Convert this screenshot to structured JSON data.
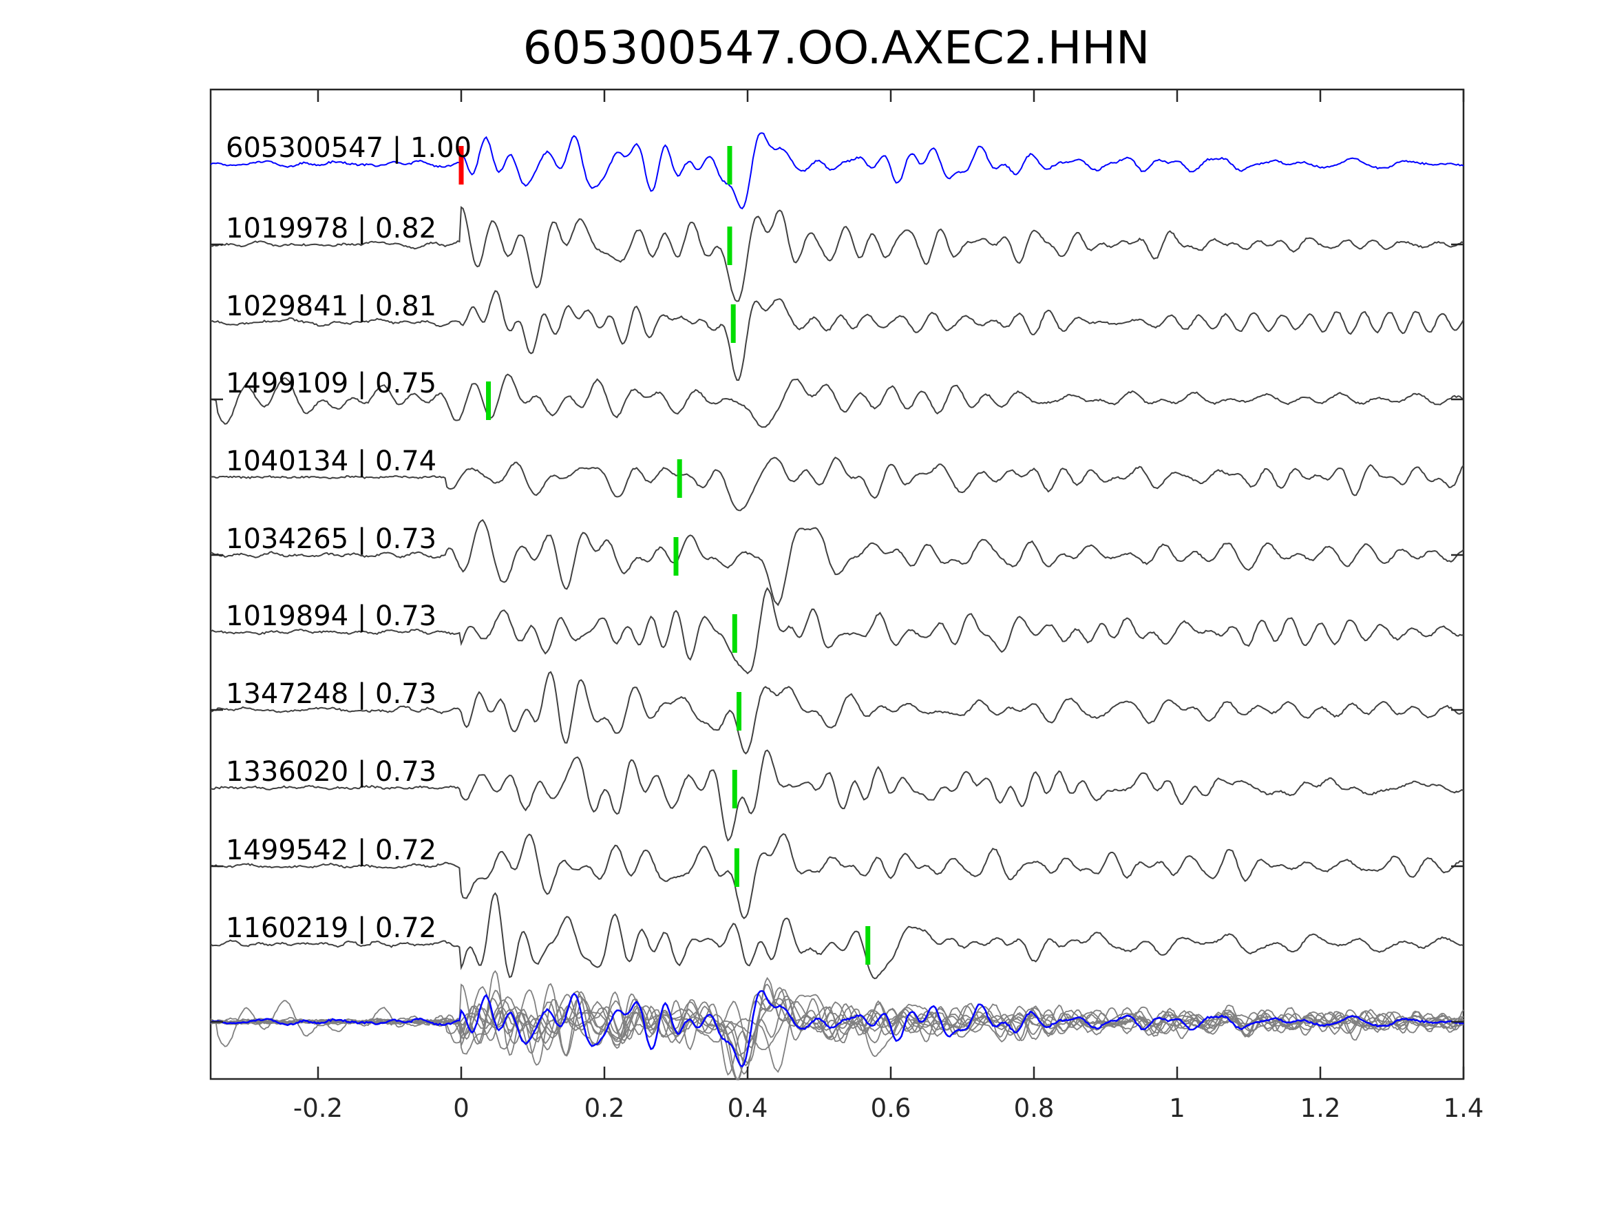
{
  "chart_data": {
    "type": "line",
    "title": "605300547.OO.AXEC2.HHN",
    "xlim": [
      -0.35,
      1.4
    ],
    "x_ticks": [
      "-0.2",
      "0",
      "0.2",
      "0.4",
      "0.6",
      "0.8",
      "1",
      "1.2",
      "1.4"
    ],
    "x_tick_values": [
      -0.2,
      0,
      0.2,
      0.4,
      0.6,
      0.8,
      1,
      1.2,
      1.4
    ],
    "grid": false,
    "template_color": "#0000ff",
    "trace_color": "#404040",
    "stack_color": "#808080",
    "template_pick_color": "#ff0000",
    "pick_color": "#00dd00",
    "series": [
      {
        "label": "605300547 | 1.00",
        "template": true,
        "picks": [
          0.0,
          0.375
        ],
        "pick_colors": [
          "#ff0000",
          "#00dd00"
        ],
        "onset": 0.0,
        "main": 0.38
      },
      {
        "label": "1019978 | 0.82",
        "picks": [
          0.375
        ],
        "onset": 0.0,
        "main": 0.38
      },
      {
        "label": "1029841 | 0.81",
        "picks": [
          0.38
        ],
        "onset": 0.0,
        "main": 0.385
      },
      {
        "label": "1499109 | 0.75",
        "picks": [
          0.038
        ],
        "onset": -0.34,
        "main": 0.42
      },
      {
        "label": "1040134 | 0.74",
        "picks": [
          0.305
        ],
        "onset": -0.02,
        "main": 0.4
      },
      {
        "label": "1034265 | 0.73",
        "picks": [
          0.3
        ],
        "onset": -0.02,
        "main": 0.44
      },
      {
        "label": "1019894 | 0.73",
        "picks": [
          0.382
        ],
        "onset": 0.0,
        "main": 0.39
      },
      {
        "label": "1347248 | 0.73",
        "picks": [
          0.388
        ],
        "onset": 0.0,
        "main": 0.39
      },
      {
        "label": "1336020 | 0.73",
        "picks": [
          0.382
        ],
        "onset": 0.0,
        "main": 0.39
      },
      {
        "label": "1499542 | 0.72",
        "picks": [
          0.385
        ],
        "onset": 0.0,
        "main": 0.39
      },
      {
        "label": "1160219 | 0.72",
        "picks": [
          0.568
        ],
        "onset": 0.0,
        "main": 0.58
      }
    ]
  }
}
